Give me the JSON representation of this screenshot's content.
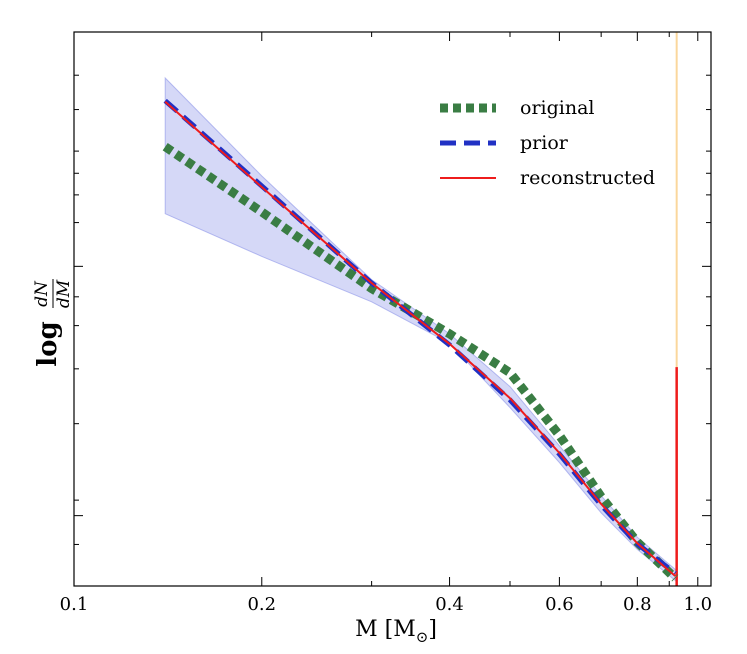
{
  "chart_data": {
    "type": "line",
    "xscale": "log",
    "xlim": [
      0.1,
      1.05
    ],
    "ylim": [
      0,
      1
    ],
    "xlabel": "M [M",
    "xlabel_sub": "⊙",
    "xlabel_close": "]",
    "ylabel_log": "log",
    "ylabel_num": "dN",
    "ylabel_den": "dM",
    "x_ticks": [
      {
        "value": 0.1,
        "label": "0.1"
      },
      {
        "value": 0.2,
        "label": "0.2"
      },
      {
        "value": 0.4,
        "label": "0.4"
      },
      {
        "value": 0.6,
        "label": "0.6"
      },
      {
        "value": 0.8,
        "label": "0.8"
      },
      {
        "value": 1.0,
        "label": "1.0"
      }
    ],
    "x_minor_ticks": [
      0.3,
      0.5,
      0.7,
      0.9
    ],
    "y_major_ticks": [
      0.127,
      0.577
    ],
    "y_minor_ticks": [
      0.075,
      0.155,
      0.293,
      0.392,
      0.47,
      0.522,
      0.656,
      0.706,
      0.745,
      0.785,
      0.86,
      0.922
    ],
    "series": [
      {
        "name": "original",
        "color": "#3a7d44",
        "style": "dotted",
        "x": [
          0.14,
          0.2,
          0.3,
          0.4,
          0.5,
          0.6,
          0.7,
          0.8,
          0.92
        ],
        "y": [
          0.793,
          0.675,
          0.537,
          0.455,
          0.385,
          0.272,
          0.161,
          0.079,
          0.014
        ]
      },
      {
        "name": "prior",
        "color": "#2131c4",
        "style": "dashed",
        "x": [
          0.14,
          0.2,
          0.3,
          0.4,
          0.5,
          0.6,
          0.7,
          0.8,
          0.92
        ],
        "y": [
          0.876,
          0.722,
          0.547,
          0.435,
          0.336,
          0.238,
          0.146,
          0.076,
          0.023
        ]
      },
      {
        "name": "reconstructed",
        "color": "#ee1c1c",
        "style": "solid",
        "x": [
          0.14,
          0.2,
          0.3,
          0.4,
          0.5,
          0.6,
          0.7,
          0.8,
          0.92
        ],
        "y": [
          0.874,
          0.72,
          0.547,
          0.437,
          0.339,
          0.24,
          0.148,
          0.077,
          0.018
        ]
      }
    ],
    "uncertainty_band": {
      "color": "#b3b8f0",
      "x": [
        0.14,
        0.2,
        0.3,
        0.4,
        0.5,
        0.6,
        0.7,
        0.8,
        0.92
      ],
      "upper": [
        0.917,
        0.74,
        0.553,
        0.455,
        0.36,
        0.253,
        0.163,
        0.088,
        0.03
      ],
      "lower": [
        0.672,
        0.595,
        0.513,
        0.438,
        0.322,
        0.223,
        0.132,
        0.066,
        0.01
      ]
    },
    "vertical_lines": [
      {
        "x": 0.925,
        "y_from": 0.0,
        "y_to": 1.0,
        "color": "#f5a623",
        "opacity": 0.45
      },
      {
        "x": 0.925,
        "y_from": 0.0,
        "y_to": 0.395,
        "color": "#ee1c1c",
        "opacity": 1.0
      }
    ],
    "legend": {
      "position": "upper-right",
      "entries": [
        "original",
        "prior",
        "reconstructed"
      ]
    }
  }
}
